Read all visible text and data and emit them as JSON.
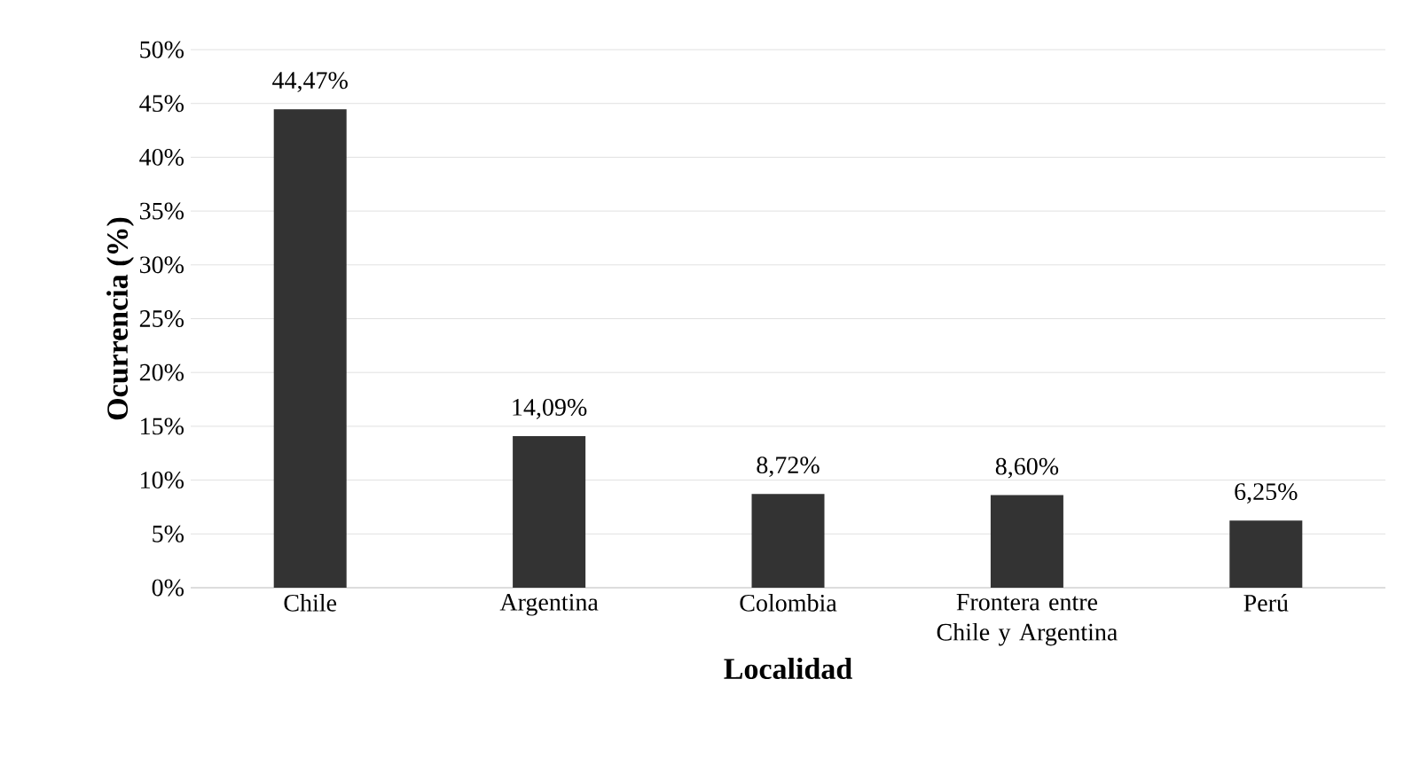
{
  "chart_data": {
    "type": "bar",
    "xlabel": "Localidad",
    "ylabel": "Ocurrencia (%)",
    "categories": [
      "Chile",
      "Argentina",
      "Colombia",
      "Frontera entre Chile y Argentina",
      "Perú"
    ],
    "values": [
      44.47,
      14.09,
      8.72,
      8.6,
      6.25
    ],
    "value_labels": [
      "44,47%",
      "14,09%",
      "8,72%",
      "8,60%",
      "6,25%"
    ],
    "color": "#333333",
    "ylim": [
      0,
      50
    ],
    "yticks": [
      {
        "value": 0,
        "label": "0%"
      },
      {
        "value": 5,
        "label": "5%"
      },
      {
        "value": 10,
        "label": "10%"
      },
      {
        "value": 15,
        "label": "15%"
      },
      {
        "value": 20,
        "label": "20%"
      },
      {
        "value": 25,
        "label": "25%"
      },
      {
        "value": 30,
        "label": "30%"
      },
      {
        "value": 35,
        "label": "35%"
      },
      {
        "value": 40,
        "label": "40%"
      },
      {
        "value": 45,
        "label": "45%"
      },
      {
        "value": 50,
        "label": "50%"
      }
    ],
    "grid": "y"
  }
}
